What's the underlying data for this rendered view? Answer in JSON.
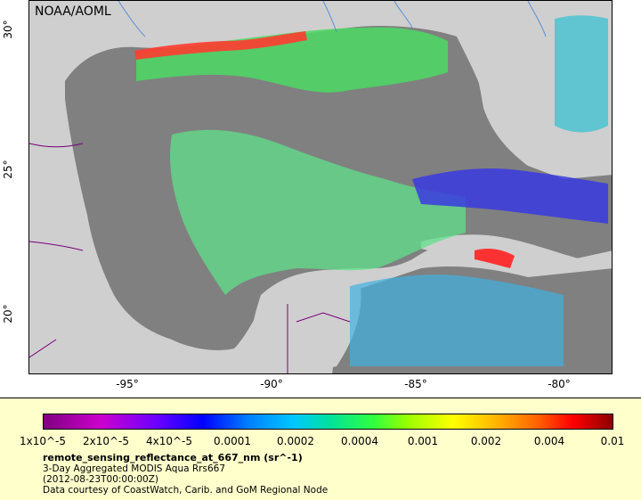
{
  "map": {
    "source_label": "NOAA/AOML",
    "x_ticks": [
      "-95°",
      "-90°",
      "-85°",
      "-80°"
    ],
    "y_ticks": [
      "30°",
      "25°",
      "20°"
    ],
    "colors": {
      "land": "#cfcfcf",
      "no_data_water": "#808080",
      "borders": "#7a007a",
      "rivers": "#5a8fd6"
    }
  },
  "legend": {
    "colorbar_ticks": [
      "1x10^-5",
      "2x10^-5",
      "4x10^-5",
      "0.0001",
      "0.0002",
      "0.0004",
      "0.001",
      "0.002",
      "0.004",
      "0.01"
    ],
    "variable": "remote_sensing_reflectance_at_667_nm (sr^-1)",
    "product": "3-Day Aggregated MODIS Aqua Rrs667",
    "date": "(2012-08-23T00:00:00Z)",
    "credit": "Data courtesy of CoastWatch, Carib. and GoM Regional Node",
    "colors": {
      "panel_background": "#ffffcc"
    }
  }
}
